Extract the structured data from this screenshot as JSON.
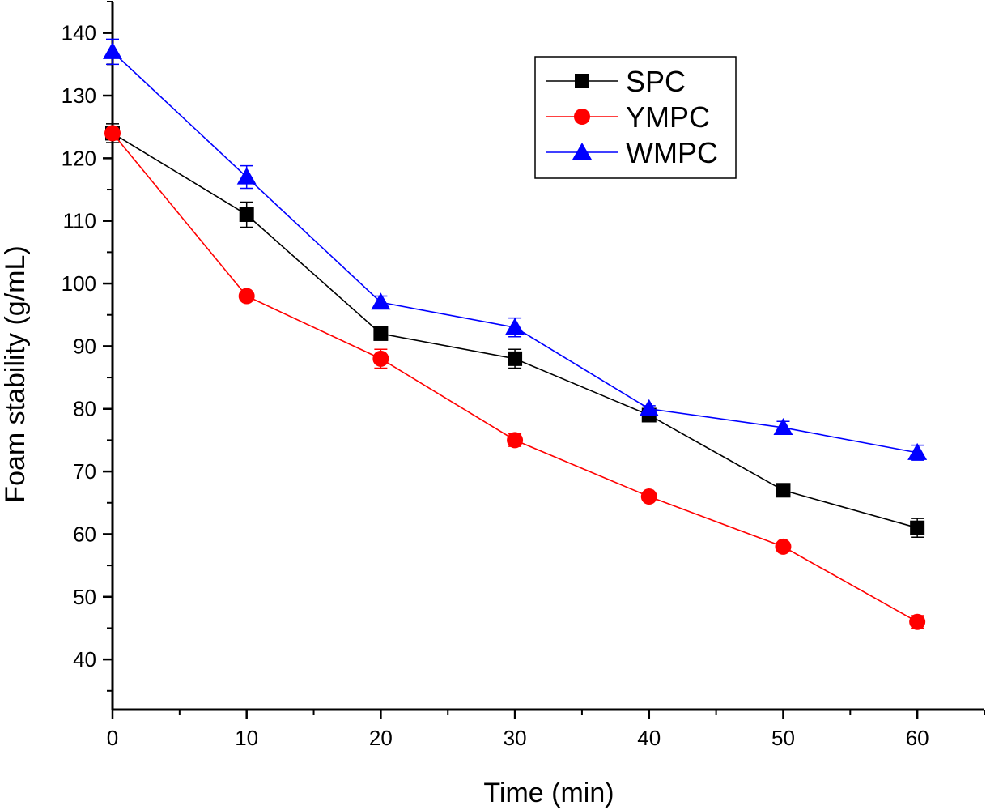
{
  "chart_data": {
    "type": "line",
    "title": "",
    "xlabel": "Time (min)",
    "ylabel": "Foam stability (g/mL)",
    "x": [
      0,
      10,
      20,
      30,
      40,
      50,
      60
    ],
    "xlim": [
      0,
      65
    ],
    "ylim": [
      32,
      145
    ],
    "xticks": [
      0,
      10,
      20,
      30,
      40,
      50,
      60
    ],
    "yticks": [
      40,
      50,
      60,
      70,
      80,
      90,
      100,
      110,
      120,
      130,
      140
    ],
    "legend_position": "top-right",
    "series": [
      {
        "name": "SPC",
        "color": "#000000",
        "marker": "square",
        "values": [
          124,
          111,
          92,
          88,
          79,
          67,
          61
        ],
        "errors": [
          1.5,
          2.0,
          0.5,
          1.5,
          0.5,
          0.5,
          1.5
        ]
      },
      {
        "name": "YMPC",
        "color": "#ff0000",
        "marker": "circle",
        "values": [
          124,
          98,
          88,
          75,
          66,
          58,
          46
        ],
        "errors": [
          0.5,
          0.5,
          1.5,
          1.0,
          0.5,
          0.5,
          1.0
        ]
      },
      {
        "name": "WMPC",
        "color": "#0000ff",
        "marker": "triangle",
        "values": [
          137,
          117,
          97,
          93,
          80,
          77,
          73
        ],
        "errors": [
          2.0,
          1.8,
          1.0,
          1.5,
          0.5,
          1.0,
          1.2
        ]
      }
    ]
  }
}
